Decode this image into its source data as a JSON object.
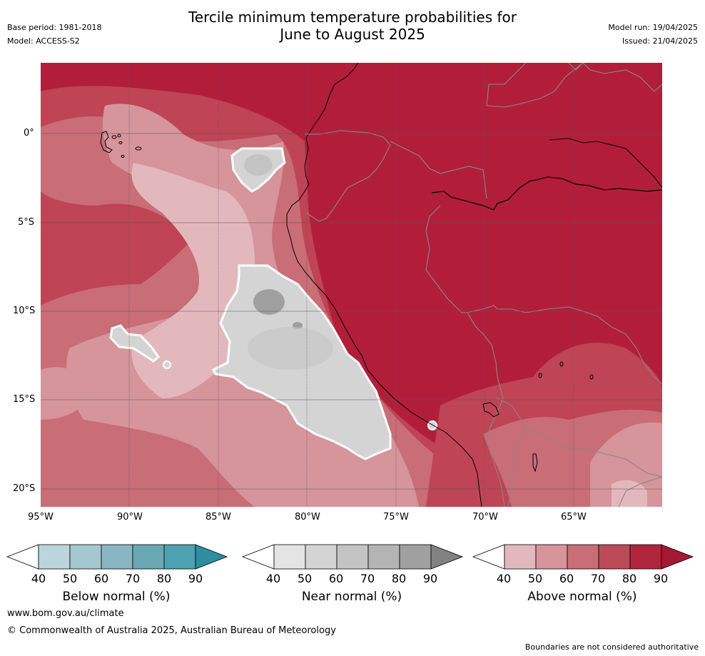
{
  "header": {
    "title_line1": "Tercile minimum temperature probabilities for",
    "title_line2": "June to August 2025",
    "base_period": "Base period: 1981-2018",
    "model": "Model: ACCESS-S2",
    "model_run": "Model run: 19/04/2025",
    "issued": "Issued: 21/04/2025"
  },
  "map": {
    "lat_labels": [
      "0°",
      "5°S",
      "10°S",
      "15°S",
      "20°S"
    ],
    "lon_labels": [
      "95°W",
      "90°W",
      "85°W",
      "80°W",
      "75°W",
      "70°W",
      "65°W"
    ]
  },
  "colorbars": [
    {
      "label": "Below normal (%)",
      "ticks": [
        "40",
        "50",
        "60",
        "70",
        "80",
        "90"
      ],
      "colors": [
        "#ffffff",
        "#bcd5dc",
        "#a5c7cf",
        "#88b6c2",
        "#6aa8b4",
        "#4ca2b0",
        "#2c8ea0"
      ]
    },
    {
      "label": "Near normal (%)",
      "ticks": [
        "40",
        "50",
        "60",
        "70",
        "80",
        "90"
      ],
      "colors": [
        "#ffffff",
        "#e4e4e4",
        "#d4d4d4",
        "#c4c4c4",
        "#b4b4b4",
        "#a0a0a0",
        "#828282"
      ]
    },
    {
      "label": "Above normal (%)",
      "ticks": [
        "40",
        "50",
        "60",
        "70",
        "80",
        "90"
      ],
      "colors": [
        "#ffffff",
        "#e3b8bd",
        "#d6949b",
        "#c96d76",
        "#bc4a57",
        "#b0243c",
        "#a51833"
      ]
    }
  ],
  "footer": {
    "website": "www.bom.gov.au/climate",
    "copyright": "© Commonwealth of Australia 2025, Australian Bureau of Meteorology",
    "disclaimer": "Boundaries are not considered authoritative"
  }
}
